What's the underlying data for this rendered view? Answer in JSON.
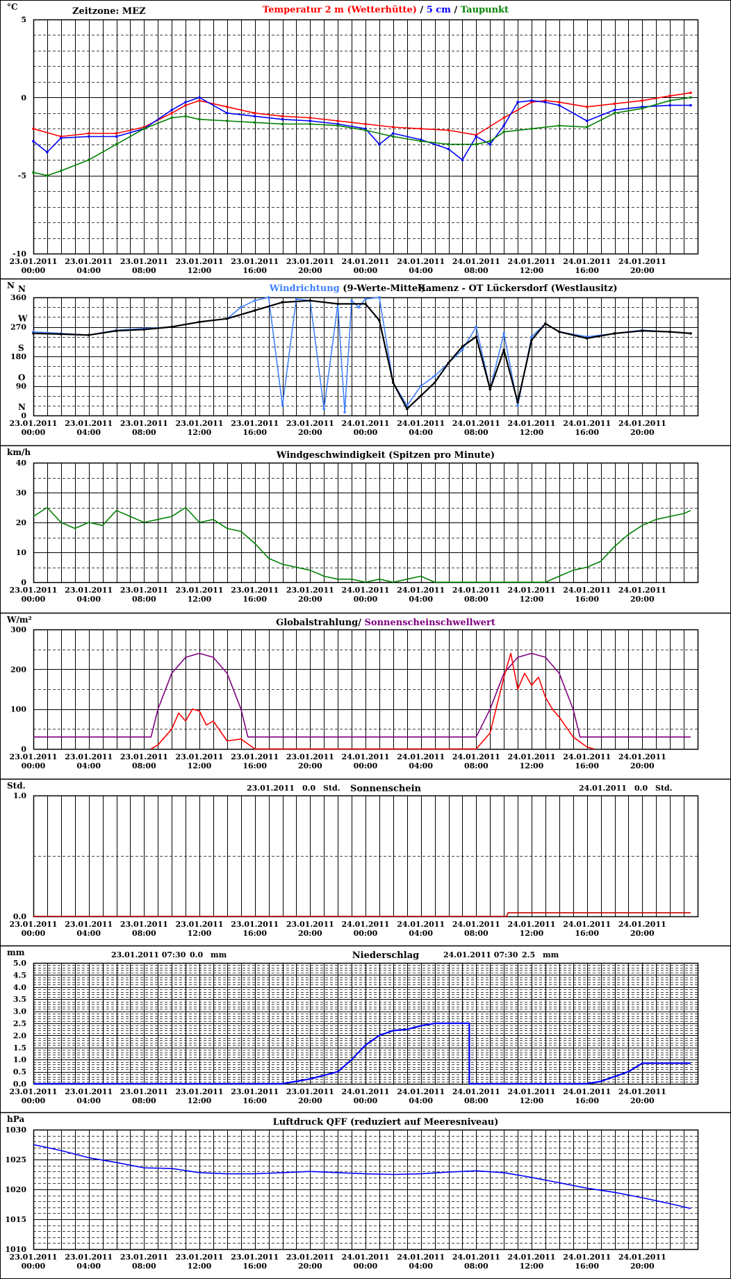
{
  "colors": {
    "red": "#ff0000",
    "blue": "#0000ff",
    "green": "#008000",
    "lightblue": "#4080ff",
    "purple": "#800080",
    "black": "#000000",
    "darkred": "#cc0000"
  },
  "x_labels": [
    {
      "date": "23.01.2011",
      "time": "00:00"
    },
    {
      "date": "23.01.2011",
      "time": "04:00"
    },
    {
      "date": "23.01.2011",
      "time": "08:00"
    },
    {
      "date": "23.01.2011",
      "time": "12:00"
    },
    {
      "date": "23.01.2011",
      "time": "16:00"
    },
    {
      "date": "23.01.2011",
      "time": "20:00"
    },
    {
      "date": "24.01.2011",
      "time": "00:00"
    },
    {
      "date": "24.01.2011",
      "time": "04:00"
    },
    {
      "date": "24.01.2011",
      "time": "08:00"
    },
    {
      "date": "24.01.2011",
      "time": "12:00"
    },
    {
      "date": "24.01.2011",
      "time": "16:00"
    },
    {
      "date": "24.01.2011",
      "time": "20:00"
    }
  ],
  "chart_data": [
    {
      "id": "temp",
      "type": "line",
      "unit": "°C",
      "zone": "Zeitzone: MEZ",
      "title_parts": [
        {
          "text": "Temperatur 2 m (Wetterhütte)",
          "color": "#ff0000"
        },
        {
          "text": "  /  ",
          "color": "#000000"
        },
        {
          "text": "5 cm",
          "color": "#0000ff"
        },
        {
          "text": " / ",
          "color": "#000000"
        },
        {
          "text": "Taupunkt",
          "color": "#008000"
        }
      ],
      "ylim": [
        -10,
        5
      ],
      "yticks": [
        {
          "v": 5,
          "t": "5"
        },
        {
          "v": 0,
          "t": "0"
        },
        {
          "v": -5,
          "t": "-5"
        },
        {
          "v": -10,
          "t": "-10"
        }
      ],
      "minor": 1,
      "series": [
        {
          "name": "Temperatur 2 m (Wetterhütte)",
          "color": "#ff0000",
          "x": [
            0,
            2,
            4,
            6,
            8,
            10,
            11,
            12,
            14,
            16,
            18,
            20,
            22,
            24,
            26,
            28,
            30,
            32,
            34,
            36,
            37,
            38,
            40,
            42,
            44,
            46,
            47.5
          ],
          "y": [
            -2.0,
            -2.5,
            -2.3,
            -2.3,
            -1.9,
            -1.0,
            -0.5,
            -0.2,
            -0.6,
            -1.0,
            -1.2,
            -1.3,
            -1.5,
            -1.7,
            -1.9,
            -2.0,
            -2.1,
            -2.4,
            -1.3,
            -0.3,
            -0.2,
            -0.3,
            -0.6,
            -0.4,
            -0.2,
            0.1,
            0.3
          ]
        },
        {
          "name": "5 cm",
          "color": "#0000ff",
          "x": [
            0,
            1,
            2,
            4,
            6,
            8,
            10,
            11,
            12,
            14,
            16,
            18,
            20,
            22,
            24,
            25,
            26,
            28,
            30,
            31,
            32,
            33,
            34,
            35,
            36,
            37,
            38,
            40,
            42,
            44,
            46,
            47.5
          ],
          "y": [
            -2.8,
            -3.5,
            -2.6,
            -2.5,
            -2.5,
            -2.0,
            -0.8,
            -0.3,
            0.0,
            -1.0,
            -1.2,
            -1.4,
            -1.5,
            -1.7,
            -2.0,
            -3.0,
            -2.3,
            -2.7,
            -3.3,
            -4.0,
            -2.5,
            -3.0,
            -1.8,
            -0.3,
            -0.2,
            -0.3,
            -0.5,
            -1.5,
            -0.8,
            -0.6,
            -0.5,
            -0.5
          ]
        },
        {
          "name": "Taupunkt",
          "color": "#008000",
          "x": [
            0,
            1,
            2,
            4,
            6,
            8,
            10,
            11,
            12,
            14,
            16,
            18,
            20,
            22,
            24,
            26,
            28,
            30,
            32,
            33,
            34,
            36,
            38,
            40,
            42,
            44,
            46,
            47.5
          ],
          "y": [
            -4.8,
            -5.0,
            -4.7,
            -4.0,
            -3.0,
            -2.0,
            -1.3,
            -1.2,
            -1.4,
            -1.5,
            -1.6,
            -1.7,
            -1.7,
            -1.8,
            -2.1,
            -2.5,
            -2.8,
            -3.0,
            -3.0,
            -2.8,
            -2.2,
            -2.0,
            -1.8,
            -1.9,
            -1.0,
            -0.7,
            -0.2,
            0.0
          ]
        }
      ]
    },
    {
      "id": "wdir",
      "type": "scatter",
      "unit": "N",
      "title_parts": [
        {
          "text": "Windrichtung",
          "color": "#4080ff"
        },
        {
          "text": " (9-Werte-Mittel)",
          "color": "#000000"
        }
      ],
      "station": "Kamenz - OT Lückersdorf (Westlausitz)",
      "ylim": [
        0,
        360
      ],
      "yticks": [
        {
          "v": 360,
          "t": "360"
        },
        {
          "v": 270,
          "t": "270"
        },
        {
          "v": 180,
          "t": "180"
        },
        {
          "v": 90,
          "t": "90"
        },
        {
          "v": 0,
          "t": "0"
        }
      ],
      "compass": [
        {
          "v": 360,
          "t": "N"
        },
        {
          "v": 270,
          "t": "W"
        },
        {
          "v": 180,
          "t": "S"
        },
        {
          "v": 90,
          "t": "O"
        },
        {
          "v": 0,
          "t": "N"
        }
      ],
      "minor": 30,
      "series": [
        {
          "name": "Windrichtung",
          "color": "#4080ff",
          "x": [
            0,
            2,
            4,
            6,
            8,
            10,
            12,
            14,
            15,
            16,
            17,
            18,
            19,
            20,
            21,
            22,
            22.5,
            23,
            23.5,
            24,
            25,
            26,
            27,
            28,
            29,
            30,
            31,
            32,
            33,
            34,
            35,
            36,
            37,
            38,
            40,
            42,
            44,
            46,
            47.5
          ],
          "y": [
            255,
            250,
            245,
            260,
            265,
            270,
            285,
            295,
            330,
            350,
            360,
            30,
            355,
            350,
            20,
            340,
            10,
            350,
            330,
            355,
            360,
            100,
            30,
            90,
            120,
            160,
            200,
            270,
            80,
            250,
            30,
            240,
            280,
            255,
            240,
            250,
            260,
            255,
            250
          ]
        },
        {
          "name": "9-Werte-Mittel",
          "color": "#000000",
          "x": [
            0,
            2,
            4,
            6,
            8,
            10,
            12,
            14,
            16,
            18,
            20,
            22,
            24,
            25,
            26,
            27,
            28,
            29,
            30,
            31,
            32,
            33,
            34,
            35,
            36,
            37,
            38,
            40,
            42,
            44,
            46,
            47.5
          ],
          "y": [
            250,
            248,
            245,
            258,
            262,
            270,
            285,
            295,
            320,
            345,
            350,
            340,
            340,
            290,
            100,
            20,
            60,
            100,
            160,
            210,
            240,
            80,
            200,
            40,
            230,
            280,
            255,
            235,
            250,
            258,
            255,
            250
          ]
        }
      ]
    },
    {
      "id": "wspd",
      "type": "line",
      "unit": "km/h",
      "title_parts": [
        {
          "text": "Windgeschwindigkeit (Spitzen pro Minute)",
          "color": "#000000"
        }
      ],
      "ylim": [
        0,
        40
      ],
      "yticks": [
        {
          "v": 40,
          "t": "40"
        },
        {
          "v": 30,
          "t": "30"
        },
        {
          "v": 20,
          "t": "20"
        },
        {
          "v": 10,
          "t": "10"
        },
        {
          "v": 0,
          "t": "0"
        }
      ],
      "minor": 5,
      "series": [
        {
          "name": "Windgeschwindigkeit",
          "color": "#008000",
          "x": [
            0,
            1,
            2,
            3,
            4,
            5,
            6,
            7,
            8,
            9,
            10,
            11,
            12,
            13,
            14,
            15,
            16,
            17,
            18,
            19,
            20,
            21,
            22,
            23,
            24,
            25,
            26,
            27,
            28,
            29,
            30,
            31,
            32,
            33,
            34,
            35,
            36,
            37,
            38,
            39,
            40,
            41,
            42,
            43,
            44,
            45,
            46,
            47,
            47.5
          ],
          "y": [
            22,
            25,
            20,
            18,
            20,
            19,
            24,
            22,
            20,
            21,
            22,
            25,
            20,
            21,
            18,
            17,
            13,
            8,
            6,
            5,
            4,
            2,
            1,
            1,
            0,
            1,
            0,
            1,
            2,
            0,
            0,
            0,
            0,
            0,
            0,
            0,
            0,
            0,
            2,
            4,
            5,
            7,
            12,
            16,
            19,
            21,
            22,
            23,
            24
          ]
        }
      ]
    },
    {
      "id": "rad",
      "type": "line",
      "unit": "W/m²",
      "title_parts": [
        {
          "text": "Globalstrahlung/ ",
          "color": "#000000"
        },
        {
          "text": "Sonnenscheinschwellwert",
          "color": "#800080"
        }
      ],
      "ylim": [
        0,
        300
      ],
      "yticks": [
        {
          "v": 300,
          "t": "300"
        },
        {
          "v": 200,
          "t": "200"
        },
        {
          "v": 100,
          "t": "100"
        },
        {
          "v": 0,
          "t": "0"
        }
      ],
      "minor": 50,
      "series": [
        {
          "name": "Sonnenscheinschwellwert",
          "color": "#800080",
          "x": [
            0,
            8.5,
            9,
            10,
            11,
            12,
            13,
            14,
            15,
            15.5,
            32,
            33,
            34,
            35,
            36,
            37,
            38,
            39,
            39.5,
            47.5
          ],
          "y": [
            30,
            30,
            100,
            190,
            230,
            240,
            230,
            190,
            100,
            30,
            30,
            100,
            190,
            230,
            240,
            230,
            190,
            100,
            30,
            30
          ]
        },
        {
          "name": "Globalstrahlung",
          "color": "#ff0000",
          "x": [
            8.5,
            9,
            10,
            10.5,
            11,
            11.5,
            12,
            12.5,
            13,
            14,
            15,
            16,
            32,
            33,
            33.5,
            34,
            34.5,
            35,
            35.5,
            36,
            36.5,
            37,
            37.5,
            38,
            39,
            40,
            40.5
          ],
          "y": [
            0,
            10,
            50,
            90,
            70,
            100,
            95,
            60,
            70,
            20,
            25,
            0,
            0,
            40,
            110,
            180,
            240,
            150,
            190,
            160,
            180,
            130,
            100,
            80,
            30,
            5,
            0
          ]
        }
      ]
    },
    {
      "id": "sun",
      "type": "line",
      "unit": "Std.",
      "title_parts": [
        {
          "text": "Sonnenschein",
          "color": "#000000"
        }
      ],
      "info_left": {
        "date": "23.01.2011",
        "value": "0.0",
        "unit": "Std."
      },
      "info_right": {
        "date": "24.01.2011",
        "value": "0.0",
        "unit": "Std."
      },
      "ylim": [
        0,
        1
      ],
      "yticks": [
        {
          "v": 1,
          "t": "1.0"
        },
        {
          "v": 0,
          "t": "0.0"
        }
      ],
      "minor": 0.5,
      "series": [
        {
          "name": "Sonnenschein",
          "color": "#cc0000",
          "x": [
            0,
            34.2,
            34.3,
            47.5
          ],
          "y": [
            0,
            0,
            0.03,
            0.03
          ]
        }
      ]
    },
    {
      "id": "rain",
      "type": "line",
      "unit": "mm",
      "title_parts": [
        {
          "text": "Niederschlag",
          "color": "#000000"
        }
      ],
      "info_left": {
        "date": "23.01.2011 07:30",
        "value": "0.0",
        "unit": "mm"
      },
      "info_right": {
        "date": "24.01.2011 07:30",
        "value": "2.5",
        "unit": "mm"
      },
      "ylim": [
        0,
        5
      ],
      "yticks": [
        {
          "v": 5,
          "t": "5.0"
        },
        {
          "v": 4.5,
          "t": "4.5"
        },
        {
          "v": 4,
          "t": "4.0"
        },
        {
          "v": 3.5,
          "t": "3.5"
        },
        {
          "v": 3,
          "t": "3.0"
        },
        {
          "v": 2.5,
          "t": "2.5"
        },
        {
          "v": 2,
          "t": "2.0"
        },
        {
          "v": 1.5,
          "t": "1.5"
        },
        {
          "v": 1,
          "t": "1.0"
        },
        {
          "v": 0.5,
          "t": "0.5"
        },
        {
          "v": 0,
          "t": "0.0"
        }
      ],
      "minor": 0.1,
      "series": [
        {
          "name": "Niederschlag",
          "color": "#0000ff",
          "x": [
            0,
            18,
            19,
            20,
            21,
            22,
            23,
            24,
            25,
            26,
            27,
            28,
            29,
            30,
            31,
            31.5,
            31.5,
            40,
            41,
            42,
            43,
            44,
            47.5
          ],
          "y": [
            0,
            0,
            0.1,
            0.2,
            0.35,
            0.5,
            1.0,
            1.6,
            2.0,
            2.2,
            2.25,
            2.4,
            2.5,
            2.5,
            2.5,
            2.5,
            0,
            0,
            0.1,
            0.3,
            0.5,
            0.85,
            0.85
          ]
        }
      ]
    },
    {
      "id": "pres",
      "type": "line",
      "unit": "hPa",
      "title_parts": [
        {
          "text": "Luftdruck QFF (reduziert auf Meeresniveau)",
          "color": "#000000"
        }
      ],
      "ylim": [
        1010,
        1030
      ],
      "yticks": [
        {
          "v": 1030,
          "t": "1030"
        },
        {
          "v": 1025,
          "t": "1025"
        },
        {
          "v": 1020,
          "t": "1020"
        },
        {
          "v": 1015,
          "t": "1015"
        },
        {
          "v": 1010,
          "t": "1010"
        }
      ],
      "minor": 1,
      "series": [
        {
          "name": "Luftdruck",
          "color": "#0000ff",
          "x": [
            0,
            2,
            4,
            6,
            8,
            10,
            12,
            14,
            16,
            18,
            20,
            22,
            24,
            26,
            28,
            30,
            32,
            34,
            36,
            38,
            40,
            42,
            44,
            46,
            47.5
          ],
          "y": [
            1027.5,
            1026.5,
            1025.3,
            1024.5,
            1023.6,
            1023.5,
            1022.8,
            1022.6,
            1022.6,
            1022.8,
            1023.0,
            1022.8,
            1022.6,
            1022.5,
            1022.6,
            1022.9,
            1023.1,
            1022.8,
            1022.0,
            1021.1,
            1020.2,
            1019.5,
            1018.6,
            1017.6,
            1016.8
          ]
        }
      ]
    }
  ]
}
